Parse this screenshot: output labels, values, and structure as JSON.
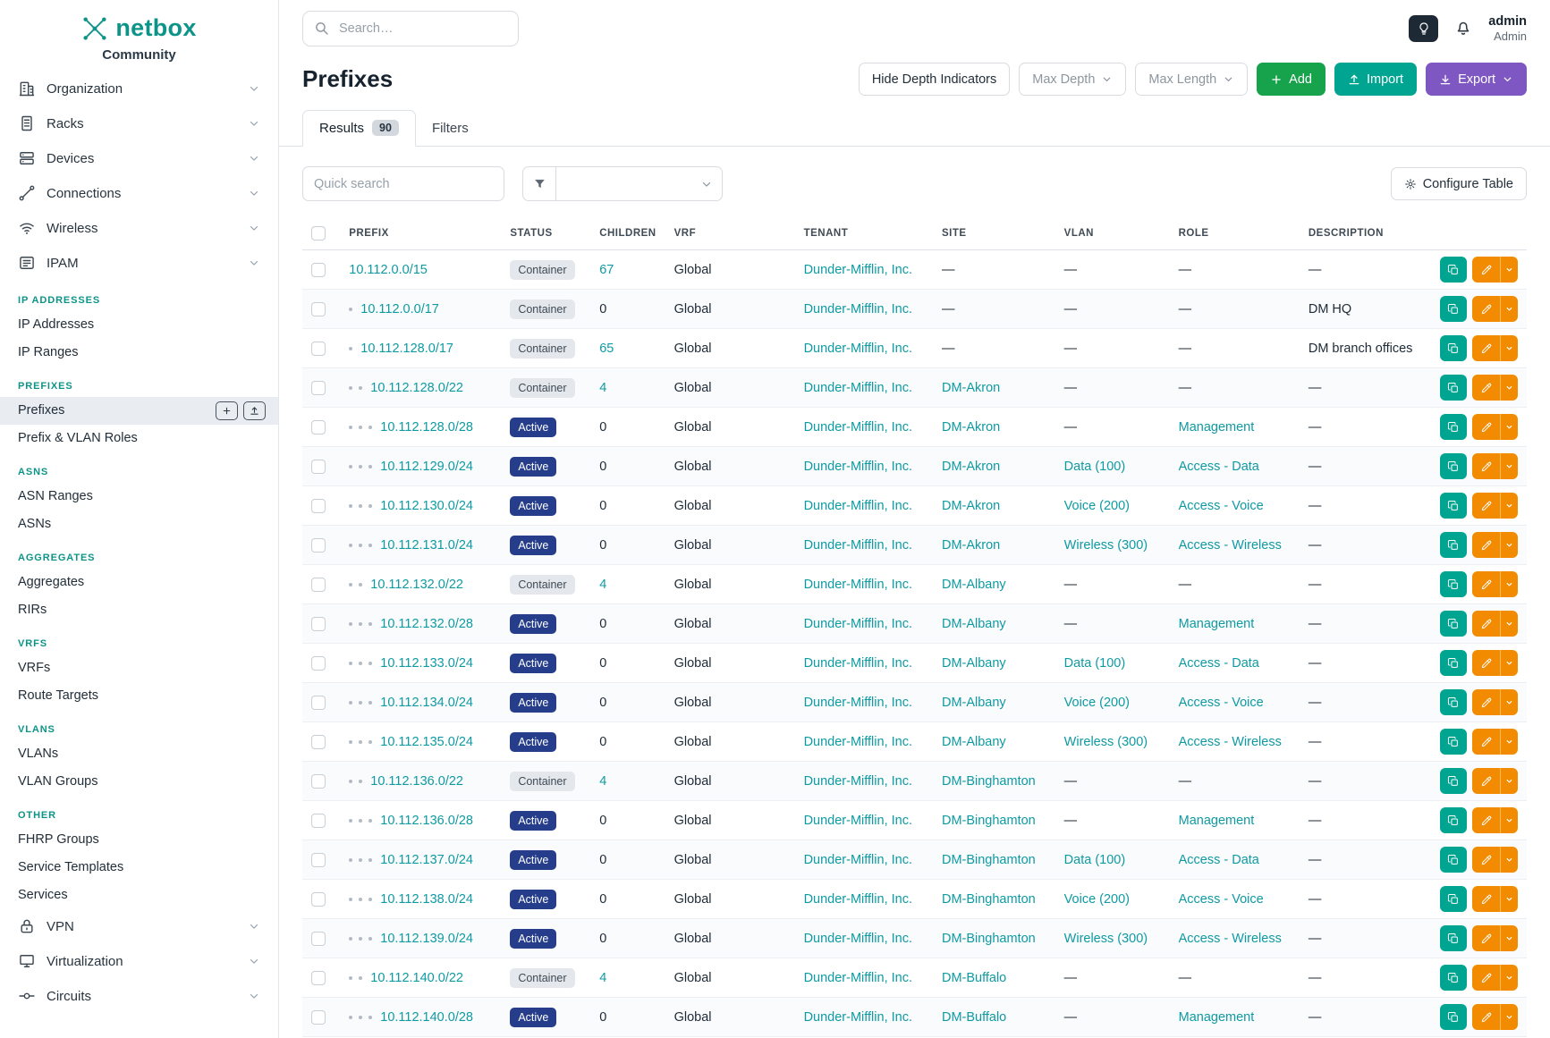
{
  "app": {
    "brand": "netbox",
    "brand_sub": "Community"
  },
  "topbar": {
    "search_placeholder": "Search…",
    "user_name": "admin",
    "user_role": "Admin"
  },
  "sidebar": {
    "top_items": [
      {
        "label": "Organization",
        "icon": "building-icon"
      },
      {
        "label": "Racks",
        "icon": "rack-icon"
      },
      {
        "label": "Devices",
        "icon": "devices-icon"
      },
      {
        "label": "Connections",
        "icon": "connections-icon"
      },
      {
        "label": "Wireless",
        "icon": "wireless-icon"
      },
      {
        "label": "IPAM",
        "icon": "ipam-icon",
        "expanded": true
      }
    ],
    "ipam_groups": [
      {
        "header": "IP ADDRESSES",
        "items": [
          {
            "label": "IP Addresses"
          },
          {
            "label": "IP Ranges"
          }
        ]
      },
      {
        "header": "PREFIXES",
        "items": [
          {
            "label": "Prefixes",
            "active": true
          },
          {
            "label": "Prefix & VLAN Roles"
          }
        ]
      },
      {
        "header": "ASNS",
        "items": [
          {
            "label": "ASN Ranges"
          },
          {
            "label": "ASNs"
          }
        ]
      },
      {
        "header": "AGGREGATES",
        "items": [
          {
            "label": "Aggregates"
          },
          {
            "label": "RIRs"
          }
        ]
      },
      {
        "header": "VRFS",
        "items": [
          {
            "label": "VRFs"
          },
          {
            "label": "Route Targets"
          }
        ]
      },
      {
        "header": "VLANS",
        "items": [
          {
            "label": "VLANs"
          },
          {
            "label": "VLAN Groups"
          }
        ]
      },
      {
        "header": "OTHER",
        "items": [
          {
            "label": "FHRP Groups"
          },
          {
            "label": "Service Templates"
          },
          {
            "label": "Services"
          }
        ]
      }
    ],
    "bottom_items": [
      {
        "label": "VPN",
        "icon": "vpn-icon"
      },
      {
        "label": "Virtualization",
        "icon": "virtualization-icon"
      },
      {
        "label": "Circuits",
        "icon": "circuits-icon"
      }
    ]
  },
  "page": {
    "title": "Prefixes",
    "toolbar": {
      "hide_depth": "Hide Depth Indicators",
      "max_depth": "Max Depth",
      "max_length": "Max Length",
      "add": "Add",
      "import": "Import",
      "export": "Export"
    },
    "tabs": [
      {
        "label": "Results",
        "badge": "90",
        "active": true
      },
      {
        "label": "Filters"
      }
    ],
    "quick_search_placeholder": "Quick search",
    "configure_table": "Configure Table"
  },
  "table": {
    "columns": [
      "PREFIX",
      "STATUS",
      "CHILDREN",
      "VRF",
      "TENANT",
      "SITE",
      "VLAN",
      "ROLE",
      "DESCRIPTION"
    ],
    "rows": [
      {
        "depth": 0,
        "prefix": "10.112.0.0/15",
        "status": "Container",
        "children": "67",
        "vrf": "Global",
        "tenant": "Dunder-Mifflin, Inc.",
        "site": "—",
        "vlan": "—",
        "role": "—",
        "description": "—"
      },
      {
        "depth": 1,
        "prefix": "10.112.0.0/17",
        "status": "Container",
        "children": "0",
        "vrf": "Global",
        "tenant": "Dunder-Mifflin, Inc.",
        "site": "—",
        "vlan": "—",
        "role": "—",
        "description": "DM HQ"
      },
      {
        "depth": 1,
        "prefix": "10.112.128.0/17",
        "status": "Container",
        "children": "65",
        "vrf": "Global",
        "tenant": "Dunder-Mifflin, Inc.",
        "site": "—",
        "vlan": "—",
        "role": "—",
        "description": "DM branch offices"
      },
      {
        "depth": 2,
        "prefix": "10.112.128.0/22",
        "status": "Container",
        "children": "4",
        "vrf": "Global",
        "tenant": "Dunder-Mifflin, Inc.",
        "site": "DM-Akron",
        "vlan": "—",
        "role": "—",
        "description": "—"
      },
      {
        "depth": 3,
        "prefix": "10.112.128.0/28",
        "status": "Active",
        "children": "0",
        "vrf": "Global",
        "tenant": "Dunder-Mifflin, Inc.",
        "site": "DM-Akron",
        "vlan": "—",
        "role": "Management",
        "description": "—"
      },
      {
        "depth": 3,
        "prefix": "10.112.129.0/24",
        "status": "Active",
        "children": "0",
        "vrf": "Global",
        "tenant": "Dunder-Mifflin, Inc.",
        "site": "DM-Akron",
        "vlan": "Data (100)",
        "role": "Access - Data",
        "description": "—"
      },
      {
        "depth": 3,
        "prefix": "10.112.130.0/24",
        "status": "Active",
        "children": "0",
        "vrf": "Global",
        "tenant": "Dunder-Mifflin, Inc.",
        "site": "DM-Akron",
        "vlan": "Voice (200)",
        "role": "Access - Voice",
        "description": "—"
      },
      {
        "depth": 3,
        "prefix": "10.112.131.0/24",
        "status": "Active",
        "children": "0",
        "vrf": "Global",
        "tenant": "Dunder-Mifflin, Inc.",
        "site": "DM-Akron",
        "vlan": "Wireless (300)",
        "role": "Access - Wireless",
        "description": "—"
      },
      {
        "depth": 2,
        "prefix": "10.112.132.0/22",
        "status": "Container",
        "children": "4",
        "vrf": "Global",
        "tenant": "Dunder-Mifflin, Inc.",
        "site": "DM-Albany",
        "vlan": "—",
        "role": "—",
        "description": "—"
      },
      {
        "depth": 3,
        "prefix": "10.112.132.0/28",
        "status": "Active",
        "children": "0",
        "vrf": "Global",
        "tenant": "Dunder-Mifflin, Inc.",
        "site": "DM-Albany",
        "vlan": "—",
        "role": "Management",
        "description": "—"
      },
      {
        "depth": 3,
        "prefix": "10.112.133.0/24",
        "status": "Active",
        "children": "0",
        "vrf": "Global",
        "tenant": "Dunder-Mifflin, Inc.",
        "site": "DM-Albany",
        "vlan": "Data (100)",
        "role": "Access - Data",
        "description": "—"
      },
      {
        "depth": 3,
        "prefix": "10.112.134.0/24",
        "status": "Active",
        "children": "0",
        "vrf": "Global",
        "tenant": "Dunder-Mifflin, Inc.",
        "site": "DM-Albany",
        "vlan": "Voice (200)",
        "role": "Access - Voice",
        "description": "—"
      },
      {
        "depth": 3,
        "prefix": "10.112.135.0/24",
        "status": "Active",
        "children": "0",
        "vrf": "Global",
        "tenant": "Dunder-Mifflin, Inc.",
        "site": "DM-Albany",
        "vlan": "Wireless (300)",
        "role": "Access - Wireless",
        "description": "—"
      },
      {
        "depth": 2,
        "prefix": "10.112.136.0/22",
        "status": "Container",
        "children": "4",
        "vrf": "Global",
        "tenant": "Dunder-Mifflin, Inc.",
        "site": "DM-Binghamton",
        "vlan": "—",
        "role": "—",
        "description": "—"
      },
      {
        "depth": 3,
        "prefix": "10.112.136.0/28",
        "status": "Active",
        "children": "0",
        "vrf": "Global",
        "tenant": "Dunder-Mifflin, Inc.",
        "site": "DM-Binghamton",
        "vlan": "—",
        "role": "Management",
        "description": "—"
      },
      {
        "depth": 3,
        "prefix": "10.112.137.0/24",
        "status": "Active",
        "children": "0",
        "vrf": "Global",
        "tenant": "Dunder-Mifflin, Inc.",
        "site": "DM-Binghamton",
        "vlan": "Data (100)",
        "role": "Access - Data",
        "description": "—"
      },
      {
        "depth": 3,
        "prefix": "10.112.138.0/24",
        "status": "Active",
        "children": "0",
        "vrf": "Global",
        "tenant": "Dunder-Mifflin, Inc.",
        "site": "DM-Binghamton",
        "vlan": "Voice (200)",
        "role": "Access - Voice",
        "description": "—"
      },
      {
        "depth": 3,
        "prefix": "10.112.139.0/24",
        "status": "Active",
        "children": "0",
        "vrf": "Global",
        "tenant": "Dunder-Mifflin, Inc.",
        "site": "DM-Binghamton",
        "vlan": "Wireless (300)",
        "role": "Access - Wireless",
        "description": "—"
      },
      {
        "depth": 2,
        "prefix": "10.112.140.0/22",
        "status": "Container",
        "children": "4",
        "vrf": "Global",
        "tenant": "Dunder-Mifflin, Inc.",
        "site": "DM-Buffalo",
        "vlan": "—",
        "role": "—",
        "description": "—"
      },
      {
        "depth": 3,
        "prefix": "10.112.140.0/28",
        "status": "Active",
        "children": "0",
        "vrf": "Global",
        "tenant": "Dunder-Mifflin, Inc.",
        "site": "DM-Buffalo",
        "vlan": "—",
        "role": "Management",
        "description": "—"
      }
    ]
  },
  "colors": {
    "brand_teal": "#0d9488",
    "link_teal": "#0e9aa2",
    "active_badge": "#253d8a",
    "container_badge": "#e4e8ec",
    "add_green": "#17a24c",
    "import_teal": "#00a591",
    "export_purple": "#7e57c2",
    "edit_orange": "#f28b00"
  }
}
